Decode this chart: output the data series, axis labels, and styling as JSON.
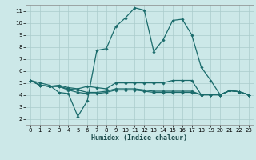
{
  "xlabel": "Humidex (Indice chaleur)",
  "bg_color": "#cce8e8",
  "grid_color": "#aacccc",
  "line_color": "#1a6b6b",
  "xlim": [
    -0.5,
    23.5
  ],
  "ylim": [
    1.5,
    11.5
  ],
  "xticks": [
    0,
    1,
    2,
    3,
    4,
    5,
    6,
    7,
    8,
    9,
    10,
    11,
    12,
    13,
    14,
    15,
    16,
    17,
    18,
    19,
    20,
    21,
    22,
    23
  ],
  "yticks": [
    2,
    3,
    4,
    5,
    6,
    7,
    8,
    9,
    10,
    11
  ],
  "series1_x": [
    0,
    1,
    2,
    3,
    4,
    5,
    6,
    7,
    8,
    9,
    10,
    11,
    12,
    13,
    14,
    15,
    16,
    17,
    18,
    19,
    20,
    21,
    22,
    23
  ],
  "series1_y": [
    5.2,
    5.0,
    4.8,
    4.2,
    4.1,
    2.2,
    3.5,
    7.7,
    7.85,
    9.7,
    10.4,
    11.25,
    11.05,
    7.6,
    8.6,
    10.2,
    10.3,
    9.0,
    6.3,
    5.2,
    4.0,
    4.35,
    4.25,
    4.0
  ],
  "series2_x": [
    0,
    1,
    2,
    3,
    4,
    5,
    6,
    7,
    8,
    9,
    10,
    11,
    12,
    13,
    14,
    15,
    16,
    17,
    18,
    19,
    20,
    21,
    22,
    23
  ],
  "series2_y": [
    5.2,
    4.8,
    4.7,
    4.8,
    4.6,
    4.5,
    4.7,
    4.6,
    4.5,
    5.0,
    5.0,
    5.0,
    5.0,
    5.0,
    5.0,
    5.2,
    5.2,
    5.2,
    4.0,
    4.0,
    4.0,
    4.35,
    4.25,
    4.0
  ],
  "series3_x": [
    0,
    1,
    2,
    3,
    4,
    5,
    6,
    7,
    8,
    9,
    10,
    11,
    12,
    13,
    14,
    15,
    16,
    17,
    18,
    19,
    20,
    21,
    22,
    23
  ],
  "series3_y": [
    5.2,
    4.8,
    4.7,
    4.7,
    4.5,
    4.4,
    4.2,
    4.2,
    4.3,
    4.5,
    4.5,
    4.5,
    4.4,
    4.3,
    4.3,
    4.3,
    4.3,
    4.3,
    4.0,
    4.0,
    4.0,
    4.35,
    4.25,
    4.0
  ],
  "series4_x": [
    0,
    1,
    2,
    3,
    4,
    5,
    6,
    7,
    8,
    9,
    10,
    11,
    12,
    13,
    14,
    15,
    16,
    17,
    18,
    19,
    20,
    21,
    22,
    23
  ],
  "series4_y": [
    5.2,
    4.8,
    4.7,
    4.7,
    4.4,
    4.2,
    4.1,
    4.1,
    4.2,
    4.4,
    4.4,
    4.4,
    4.3,
    4.2,
    4.2,
    4.2,
    4.2,
    4.2,
    4.0,
    4.0,
    4.0,
    4.35,
    4.25,
    4.0
  ]
}
